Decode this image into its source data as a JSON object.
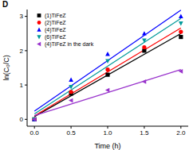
{
  "chart_data": {
    "type": "scatter",
    "title": "D",
    "x_label": "Time (h)",
    "y_label": "ln(C₀/C)",
    "x": [
      0,
      0.5,
      1.0,
      1.5,
      2.0
    ],
    "series": [
      {
        "name": "(1)TiFeZ",
        "color": "#000000",
        "marker": "square",
        "values": [
          0,
          0.75,
          1.3,
          2.0,
          2.4
        ]
      },
      {
        "name": "(2)TiFeZ",
        "color": "#ff0000",
        "marker": "circle",
        "values": [
          0,
          0.8,
          1.45,
          2.1,
          2.55
        ]
      },
      {
        "name": "(4)TiFeZ",
        "color": "#0000ff",
        "marker": "triangle",
        "values": [
          0,
          1.15,
          1.9,
          2.5,
          3.0
        ]
      },
      {
        "name": "(6)TiFeZ",
        "color": "#009a9a",
        "marker": "triangle-down",
        "values": [
          0,
          0.95,
          1.7,
          2.3,
          2.8
        ]
      },
      {
        "name": "(4)TiFeZ in the dark",
        "color": "#9933cc",
        "marker": "triangle-left",
        "values": [
          0,
          0.55,
          0.85,
          1.1,
          1.4
        ]
      }
    ],
    "xlim": [
      -0.1,
      2.1
    ],
    "xticks": [
      {
        "value": 0,
        "label": "0.0"
      },
      {
        "value": 0.5,
        "label": "0.5"
      },
      {
        "value": 1,
        "label": "1.0"
      },
      {
        "value": 1.5,
        "label": "1.5"
      },
      {
        "value": 2,
        "label": "2.0"
      }
    ],
    "ylim": [
      -0.2,
      3.2
    ],
    "yticks": [
      0,
      1,
      2,
      3
    ],
    "grid": false,
    "legend": "upper left"
  }
}
